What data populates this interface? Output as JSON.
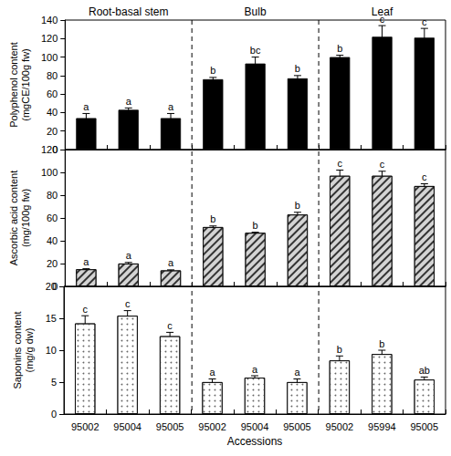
{
  "chart_data": [
    {
      "type": "bar",
      "ylabel": "Polyphenol content (mgCE/100g fw)",
      "categories": [
        "95002",
        "95004",
        "95005",
        "95002",
        "95004",
        "95005",
        "95002",
        "95994",
        "95005"
      ],
      "group_labels": [
        "Root-basal stem",
        "Bulb",
        "Leaf"
      ],
      "values": [
        34,
        43,
        34,
        76,
        93,
        77,
        100,
        122,
        121
      ],
      "errors": [
        5,
        2,
        5,
        2,
        7,
        3,
        2,
        12,
        10
      ],
      "letters": [
        "a",
        "a",
        "a",
        "b",
        "bc",
        "b",
        "b",
        "c",
        "c"
      ],
      "color": "#000000",
      "ylim": [
        0,
        140
      ],
      "yticks": [
        0,
        20,
        40,
        60,
        80,
        100,
        120,
        140
      ],
      "grid": false,
      "tick_labels": "y"
    },
    {
      "type": "bar",
      "ylabel": "Ascorbic acid content (mg/100g fw)",
      "categories": [
        "95002",
        "95004",
        "95005",
        "95002",
        "95004",
        "95005",
        "95002",
        "95994",
        "95005"
      ],
      "values": [
        15,
        20,
        14,
        52,
        47,
        63,
        97,
        97,
        88
      ],
      "errors": [
        0.5,
        1,
        0.5,
        1,
        0.5,
        2,
        5,
        4,
        2
      ],
      "letters": [
        "a",
        "a",
        "a",
        "b",
        "b",
        "b",
        "c",
        "c",
        "c"
      ],
      "color": "#d4d4d4",
      "ylim": [
        0,
        120
      ],
      "yticks": [
        0,
        20,
        40,
        60,
        80,
        100,
        120
      ],
      "grid": false,
      "tick_labels": "y"
    },
    {
      "type": "bar",
      "ylabel": "Saponins content (mg/g dw)",
      "xlabel": "Accessions",
      "categories": [
        "95002",
        "95004",
        "95005",
        "95002",
        "95004",
        "95005",
        "95002",
        "95994",
        "95005"
      ],
      "values": [
        14.2,
        15.4,
        12.2,
        5.0,
        5.7,
        5.0,
        8.4,
        9.4,
        5.4
      ],
      "errors": [
        1.2,
        0.8,
        0.6,
        0.5,
        0.3,
        0.5,
        0.7,
        0.6,
        0.4
      ],
      "letters": [
        "c",
        "c",
        "c",
        "a",
        "a",
        "a",
        "b",
        "b",
        "ab"
      ],
      "color": "#ffffff",
      "ylim": [
        0,
        20
      ],
      "yticks": [
        0,
        5,
        10,
        15,
        20
      ],
      "grid": false
    }
  ]
}
